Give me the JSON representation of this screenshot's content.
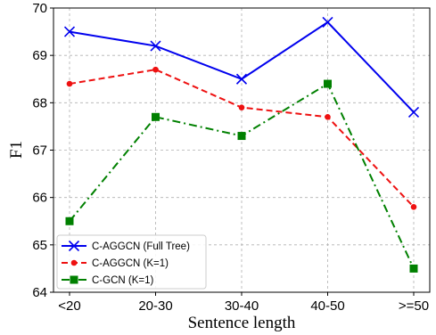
{
  "chart_data": {
    "type": "line",
    "categories": [
      "<20",
      "20-30",
      "30-40",
      "40-50",
      ">=50"
    ],
    "series": [
      {
        "name": "C-AGGCN (Full Tree)",
        "values": [
          69.5,
          69.2,
          68.5,
          69.7,
          67.8
        ],
        "color": "#0000ee",
        "line_style": "solid",
        "marker": "x"
      },
      {
        "name": "C-AGGCN (K=1)",
        "values": [
          68.4,
          68.7,
          67.9,
          67.7,
          65.8
        ],
        "color": "#ee1111",
        "line_style": "dashed",
        "marker": "circle"
      },
      {
        "name": "C-GCN (K=1)",
        "values": [
          65.5,
          67.7,
          67.3,
          68.4,
          64.5
        ],
        "color": "#008000",
        "line_style": "dashdot",
        "marker": "square"
      }
    ],
    "xlabel": "Sentence length",
    "ylabel": "F1",
    "ylim": [
      64,
      70
    ],
    "yticks": [
      "64",
      "65",
      "66",
      "67",
      "68",
      "69",
      "70"
    ],
    "grid": true,
    "legend_position": "lower-left"
  }
}
